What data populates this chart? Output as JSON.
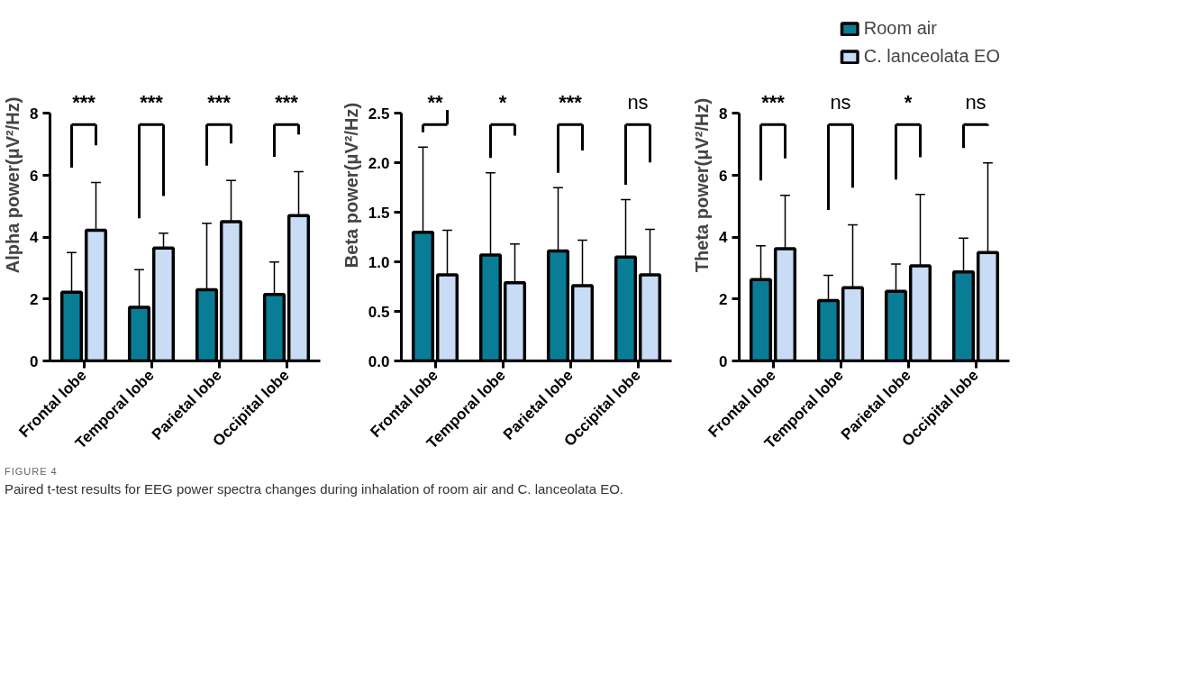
{
  "chart_data": [
    {
      "type": "bar",
      "ylabel": "Alpha power(μV²/Hz)",
      "categories": [
        "Frontal lobe",
        "Temporal lobe",
        "Parietal lobe",
        "Occipital lobe"
      ],
      "ylim": [
        0,
        8
      ],
      "yticks": [
        0,
        2,
        4,
        6,
        8
      ],
      "grid": false,
      "series": [
        {
          "color": "#0a7d96",
          "values": [
            2.22,
            1.73,
            2.3,
            2.15
          ],
          "errors": [
            [
              2.22,
              3.5
            ],
            [
              1.73,
              2.95
            ],
            [
              2.3,
              4.45
            ],
            [
              2.15,
              3.2
            ]
          ]
        },
        {
          "color": "#c8dcf5",
          "values": [
            4.22,
            3.65,
            4.5,
            4.7
          ],
          "errors": [
            [
              4.22,
              5.77
            ],
            [
              3.65,
              4.13
            ],
            [
              4.5,
              5.83
            ],
            [
              4.7,
              6.12
            ]
          ]
        }
      ],
      "annotations": [
        "***",
        "***",
        "***",
        "***",
        "FIGURE 4",
        "Paired t-test results for EEG power spectra changes during inhalation of room air and C. lanceolata EO."
      ]
    },
    {
      "type": "bar",
      "ylabel": "Beta power(μV²/Hz)",
      "categories": [
        "Frontal lobe",
        "Temporal lobe",
        "Parietal lobe",
        "Occipital lobe"
      ],
      "ylim": [
        0,
        2.5
      ],
      "yticks": [
        {
          "value": 0,
          "label": "0.0"
        },
        0.5,
        {
          "value": 1,
          "label": "1.0"
        },
        1.5,
        {
          "value": 2,
          "label": "2.0"
        },
        2.5
      ],
      "grid": false,
      "series": [
        {
          "color": "#0a7d96",
          "values": [
            1.3,
            1.07,
            1.11,
            1.05
          ],
          "errors": [
            [
              1.3,
              2.16
            ],
            [
              1.07,
              1.9
            ],
            [
              1.11,
              1.75
            ],
            [
              1.05,
              1.63
            ]
          ]
        },
        {
          "color": "#c8dcf5",
          "values": [
            0.87,
            0.79,
            0.76,
            0.87
          ],
          "errors": [
            [
              0.87,
              1.32
            ],
            [
              0.79,
              1.18
            ],
            [
              0.76,
              1.22
            ],
            [
              0.87,
              1.33
            ]
          ]
        }
      ],
      "annotations": [
        "**",
        "*",
        "***",
        "ns"
      ]
    },
    {
      "type": "bar",
      "ylabel": "Theta power(μV²/Hz)",
      "categories": [
        "Frontal lobe",
        "Temporal lobe",
        "Parietal lobe",
        "Occipital lobe"
      ],
      "ylim": [
        0,
        8
      ],
      "yticks": [
        0,
        2,
        4,
        6,
        8
      ],
      "grid": false,
      "legend": "top right",
      "series": [
        {
          "name": "Room air",
          "color": "#0a7d96",
          "values": [
            2.63,
            1.95,
            2.25,
            2.88
          ],
          "errors": [
            [
              2.63,
              3.72
            ],
            [
              1.95,
              2.77
            ],
            [
              2.25,
              3.13
            ],
            [
              2.88,
              3.97
            ]
          ]
        },
        {
          "name": "C. lanceolata EO",
          "color": "#c8dcf5",
          "values": [
            3.63,
            2.37,
            3.07,
            3.5
          ],
          "errors": [
            [
              3.63,
              5.35
            ],
            [
              2.37,
              4.4
            ],
            [
              3.07,
              5.38
            ],
            [
              3.5,
              6.4
            ]
          ]
        }
      ],
      "annotations": [
        "***",
        "ns",
        "*",
        "ns"
      ]
    }
  ]
}
